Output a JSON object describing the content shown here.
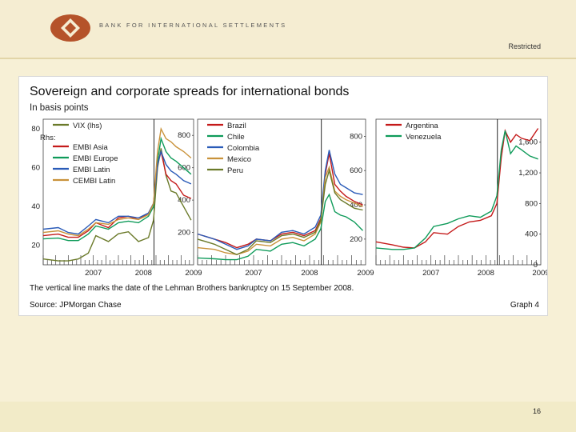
{
  "header": {
    "bank_name": "BANK FOR INTERNATIONAL SETTLEMENTS",
    "classification": "Restricted"
  },
  "footer": {
    "page_number": "16"
  },
  "figure": {
    "title": "Sovereign and corporate spreads for international bonds",
    "subtitle": "In basis points",
    "note": "The vertical line marks the date of the Lehman Brothers bankruptcy on 15 September 2008.",
    "source": "Source: JPMorgan Chase",
    "graph_number": "Graph 4"
  },
  "colors": {
    "vix": "#6b7a2a",
    "embi_asia": "#c41a1a",
    "embi_europe": "#0f9b5a",
    "embi_latin": "#2a5bb8",
    "cembi_latin": "#c9923a",
    "brazil": "#c41a1a",
    "chile": "#0f9b5a",
    "colombia": "#2a5bb8",
    "mexico": "#c9923a",
    "peru": "#6b7a2a",
    "argentina": "#c41a1a",
    "venezuela": "#0f9b5a"
  },
  "chart_data": [
    {
      "type": "line",
      "x_ticks": [
        "2007",
        "2008",
        "2009"
      ],
      "x_range": [
        2006.5,
        2009.5
      ],
      "event_marker": 2008.71,
      "left_axis": {
        "label": "",
        "ticks": [
          "20",
          "40",
          "60",
          "80"
        ],
        "range": [
          10,
          85
        ]
      },
      "right_axis": {
        "label": "Rhs:",
        "ticks": [
          "200",
          "400",
          "600",
          "800"
        ],
        "range": [
          0,
          900
        ]
      },
      "legend_placement": "top-left",
      "series": [
        {
          "name": "VIX (lhs)",
          "axis": "left",
          "color_key": "vix",
          "x": [
            2006.5,
            2006.8,
            2007.0,
            2007.2,
            2007.4,
            2007.55,
            2007.8,
            2008.0,
            2008.2,
            2008.4,
            2008.6,
            2008.7,
            2008.78,
            2008.85,
            2008.95,
            2009.05,
            2009.15,
            2009.3,
            2009.45
          ],
          "y": [
            13,
            12,
            12,
            13,
            16,
            25,
            22,
            26,
            27,
            22,
            24,
            33,
            60,
            70,
            56,
            48,
            47,
            40,
            33
          ]
        },
        {
          "name": "EMBI Asia",
          "axis": "right",
          "color_key": "embi_asia",
          "x": [
            2006.5,
            2006.8,
            2007.0,
            2007.2,
            2007.4,
            2007.55,
            2007.8,
            2008.0,
            2008.2,
            2008.4,
            2008.6,
            2008.7,
            2008.78,
            2008.85,
            2008.95,
            2009.05,
            2009.15,
            2009.3,
            2009.45
          ],
          "y": [
            180,
            190,
            170,
            170,
            210,
            260,
            230,
            290,
            300,
            280,
            320,
            380,
            620,
            700,
            560,
            520,
            500,
            430,
            410
          ]
        },
        {
          "name": "EMBI Europe",
          "axis": "right",
          "color_key": "embi_europe",
          "x": [
            2006.5,
            2006.8,
            2007.0,
            2007.2,
            2007.4,
            2007.55,
            2007.8,
            2008.0,
            2008.2,
            2008.4,
            2008.6,
            2008.7,
            2008.78,
            2008.85,
            2008.95,
            2009.05,
            2009.15,
            2009.3,
            2009.45
          ],
          "y": [
            160,
            165,
            150,
            150,
            190,
            240,
            220,
            260,
            270,
            260,
            300,
            360,
            640,
            780,
            700,
            660,
            640,
            600,
            560
          ]
        },
        {
          "name": "EMBI Latin",
          "axis": "right",
          "color_key": "embi_latin",
          "x": [
            2006.5,
            2006.8,
            2007.0,
            2007.2,
            2007.4,
            2007.55,
            2007.8,
            2008.0,
            2008.2,
            2008.4,
            2008.6,
            2008.7,
            2008.78,
            2008.85,
            2008.95,
            2009.05,
            2009.15,
            2009.3,
            2009.45
          ],
          "y": [
            220,
            230,
            200,
            190,
            240,
            280,
            260,
            300,
            300,
            290,
            320,
            380,
            620,
            700,
            620,
            580,
            560,
            520,
            500
          ]
        },
        {
          "name": "CEMBI Latin",
          "axis": "right",
          "color_key": "cembi_latin",
          "x": [
            2006.5,
            2006.8,
            2007.0,
            2007.2,
            2007.4,
            2007.55,
            2007.8,
            2008.0,
            2008.2,
            2008.4,
            2008.6,
            2008.7,
            2008.78,
            2008.85,
            2008.95,
            2009.05,
            2009.15,
            2009.3,
            2009.45
          ],
          "y": [
            200,
            210,
            190,
            180,
            220,
            260,
            250,
            280,
            290,
            280,
            310,
            380,
            700,
            840,
            780,
            760,
            730,
            700,
            660
          ]
        }
      ]
    },
    {
      "type": "line",
      "x_ticks": [
        "2007",
        "2008",
        "2009"
      ],
      "x_range": [
        2006.5,
        2009.5
      ],
      "event_marker": 2008.71,
      "right_axis": {
        "ticks": [
          "200",
          "400",
          "600",
          "800"
        ],
        "range": [
          50,
          900
        ]
      },
      "legend_placement": "top-left",
      "series": [
        {
          "name": "Brazil",
          "color_key": "brazil",
          "x": [
            2006.5,
            2006.8,
            2007.0,
            2007.2,
            2007.4,
            2007.55,
            2007.8,
            2008.0,
            2008.2,
            2008.4,
            2008.6,
            2008.7,
            2008.78,
            2008.85,
            2008.95,
            2009.05,
            2009.15,
            2009.3,
            2009.45
          ],
          "y": [
            230,
            200,
            180,
            150,
            170,
            200,
            190,
            230,
            240,
            220,
            250,
            320,
            580,
            700,
            520,
            480,
            450,
            420,
            400
          ]
        },
        {
          "name": "Chile",
          "color_key": "chile",
          "x": [
            2006.5,
            2006.8,
            2007.0,
            2007.2,
            2007.4,
            2007.55,
            2007.8,
            2008.0,
            2008.2,
            2008.4,
            2008.6,
            2008.7,
            2008.78,
            2008.85,
            2008.95,
            2009.05,
            2009.15,
            2009.3,
            2009.45
          ],
          "y": [
            90,
            85,
            80,
            80,
            100,
            140,
            130,
            170,
            180,
            160,
            200,
            260,
            420,
            460,
            360,
            340,
            330,
            300,
            250
          ]
        },
        {
          "name": "Colombia",
          "color_key": "colombia",
          "x": [
            2006.5,
            2006.8,
            2007.0,
            2007.2,
            2007.4,
            2007.55,
            2007.8,
            2008.0,
            2008.2,
            2008.4,
            2008.6,
            2008.7,
            2008.78,
            2008.85,
            2008.95,
            2009.05,
            2009.15,
            2009.3,
            2009.45
          ],
          "y": [
            230,
            200,
            170,
            140,
            160,
            200,
            190,
            240,
            250,
            230,
            270,
            340,
            600,
            720,
            580,
            520,
            500,
            470,
            460
          ]
        },
        {
          "name": "Mexico",
          "color_key": "mexico",
          "x": [
            2006.5,
            2006.8,
            2007.0,
            2007.2,
            2007.4,
            2007.55,
            2007.8,
            2008.0,
            2008.2,
            2008.4,
            2008.6,
            2008.7,
            2008.78,
            2008.85,
            2008.95,
            2009.05,
            2009.15,
            2009.3,
            2009.45
          ],
          "y": [
            150,
            140,
            120,
            110,
            130,
            170,
            160,
            200,
            210,
            190,
            230,
            300,
            560,
            620,
            480,
            450,
            430,
            410,
            390
          ]
        },
        {
          "name": "Peru",
          "color_key": "peru",
          "x": [
            2006.5,
            2006.8,
            2007.0,
            2007.2,
            2007.4,
            2007.55,
            2007.8,
            2008.0,
            2008.2,
            2008.4,
            2008.6,
            2008.7,
            2008.78,
            2008.85,
            2008.95,
            2009.05,
            2009.15,
            2009.3,
            2009.45
          ],
          "y": [
            200,
            170,
            140,
            110,
            140,
            190,
            180,
            220,
            230,
            210,
            240,
            310,
            520,
            600,
            470,
            430,
            410,
            380,
            370
          ]
        }
      ]
    },
    {
      "type": "line",
      "x_ticks": [
        "2007",
        "2008",
        "2009"
      ],
      "x_range": [
        2006.5,
        2009.5
      ],
      "event_marker": 2008.71,
      "right_axis": {
        "ticks": [
          "0",
          "400",
          "800",
          "1,200",
          "1,600"
        ],
        "range": [
          0,
          1900
        ]
      },
      "legend_placement": "top-left",
      "series": [
        {
          "name": "Argentina",
          "color_key": "argentina",
          "x": [
            2006.5,
            2006.8,
            2007.0,
            2007.2,
            2007.4,
            2007.55,
            2007.8,
            2008.0,
            2008.2,
            2008.4,
            2008.6,
            2008.7,
            2008.78,
            2008.85,
            2008.95,
            2009.05,
            2009.15,
            2009.3,
            2009.45
          ],
          "y": [
            300,
            260,
            230,
            220,
            300,
            420,
            400,
            500,
            560,
            580,
            640,
            800,
            1400,
            1750,
            1600,
            1700,
            1650,
            1620,
            1780
          ]
        },
        {
          "name": "Venezuela",
          "color_key": "venezuela",
          "x": [
            2006.5,
            2006.8,
            2007.0,
            2007.2,
            2007.4,
            2007.55,
            2007.8,
            2008.0,
            2008.2,
            2008.4,
            2008.6,
            2008.7,
            2008.78,
            2008.85,
            2008.95,
            2009.05,
            2009.15,
            2009.3,
            2009.45
          ],
          "y": [
            220,
            200,
            200,
            220,
            350,
            500,
            540,
            600,
            640,
            620,
            700,
            900,
            1500,
            1750,
            1450,
            1550,
            1500,
            1420,
            1380
          ]
        }
      ]
    }
  ]
}
